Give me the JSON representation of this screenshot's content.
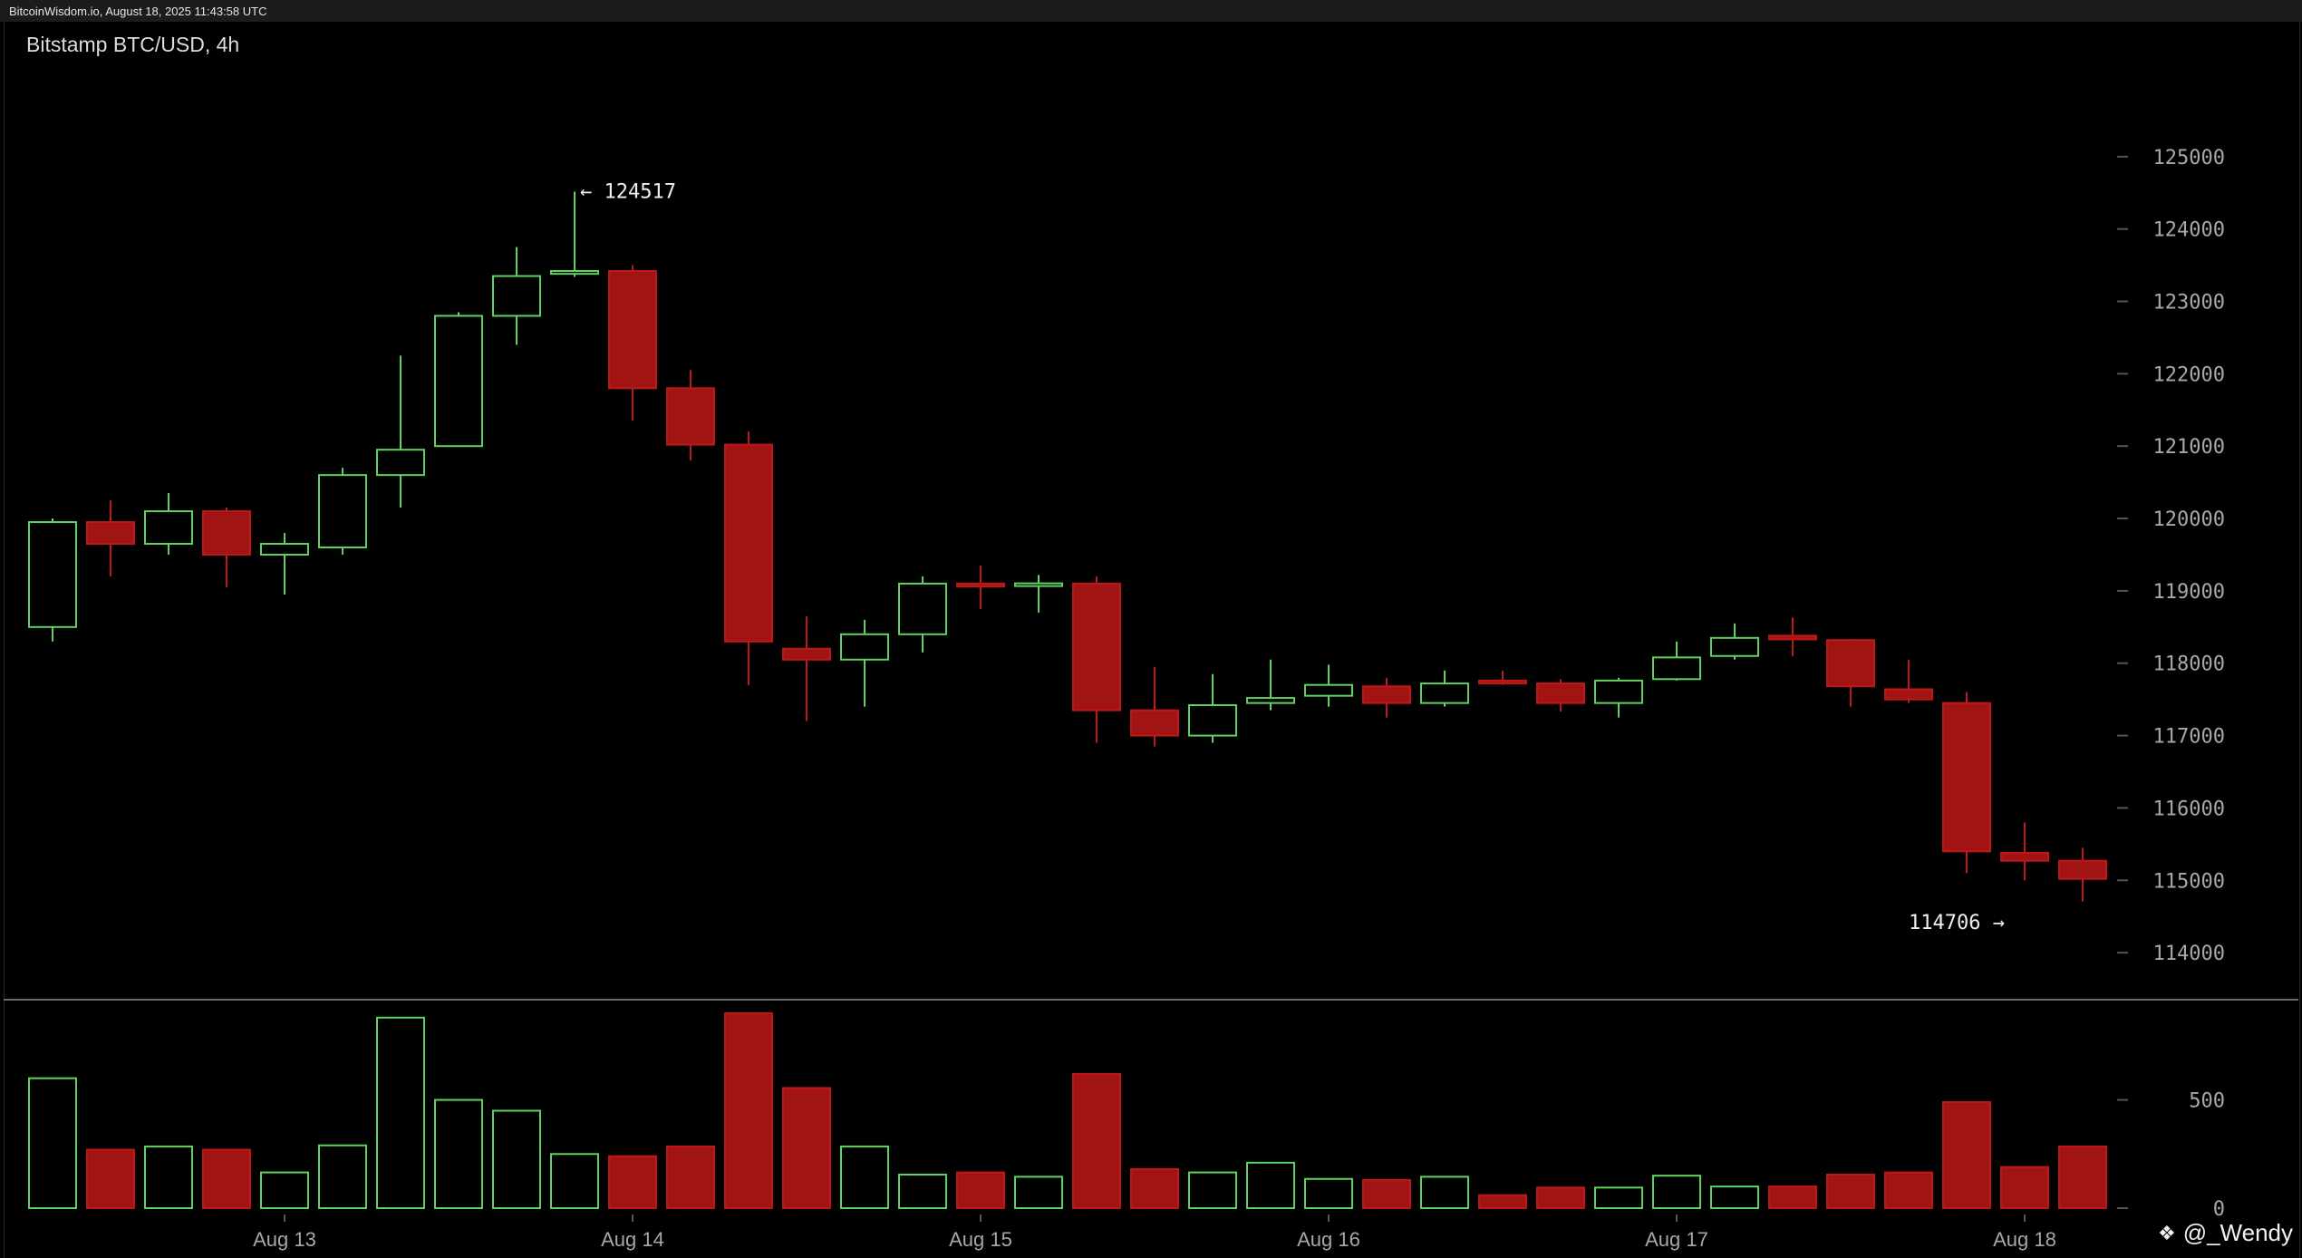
{
  "header": {
    "source": "BitcoinWisdom.io, August 18, 2025 11:43:58 UTC",
    "title": "Bitstamp BTC/USD, 4h"
  },
  "watermark": {
    "icon": "binance-diamond-icon",
    "text": "@_Wendy"
  },
  "colors": {
    "up": "#5fd35f",
    "down": "#a01414",
    "down_border": "#c01818",
    "axis_text": "#a8a8a8",
    "grid": "#555555"
  },
  "chart_data": {
    "type": "candlestick",
    "title": "Bitstamp BTC/USD, 4h",
    "price_axis": {
      "ylim": [
        113200,
        126100
      ],
      "ticks": [
        114000,
        115000,
        116000,
        117000,
        118000,
        119000,
        120000,
        121000,
        122000,
        123000,
        124000,
        125000
      ]
    },
    "volume_axis": {
      "ylim": [
        0,
        900
      ],
      "ticks": [
        0,
        500
      ]
    },
    "x_labels": [
      "Aug 13",
      "Aug 14",
      "Aug 15",
      "Aug 16",
      "Aug 17",
      "Aug 18"
    ],
    "x_label_positions": [
      4,
      10,
      16,
      22,
      28,
      34
    ],
    "annotations": [
      {
        "label": "← 124517",
        "candle": 9,
        "price": 124517,
        "side": "right"
      },
      {
        "label": "114706 →",
        "candle": 34,
        "price": 114706,
        "side": "left"
      }
    ],
    "candles": [
      {
        "o": 118500,
        "h": 120000,
        "l": 118300,
        "c": 119950,
        "v": 600
      },
      {
        "o": 119950,
        "h": 120250,
        "l": 119200,
        "c": 119650,
        "v": 270
      },
      {
        "o": 119650,
        "h": 120350,
        "l": 119500,
        "c": 120100,
        "v": 285
      },
      {
        "o": 120100,
        "h": 120150,
        "l": 119050,
        "c": 119500,
        "v": 270
      },
      {
        "o": 119500,
        "h": 119800,
        "l": 118950,
        "c": 119650,
        "v": 165
      },
      {
        "o": 119600,
        "h": 120700,
        "l": 119500,
        "c": 120600,
        "v": 290
      },
      {
        "o": 120600,
        "h": 122250,
        "l": 120150,
        "c": 120950,
        "v": 880
      },
      {
        "o": 121000,
        "h": 122850,
        "l": 121000,
        "c": 122800,
        "v": 500
      },
      {
        "o": 122800,
        "h": 123750,
        "l": 122400,
        "c": 123350,
        "v": 450
      },
      {
        "o": 123380,
        "h": 124517,
        "l": 123340,
        "c": 123420,
        "v": 250
      },
      {
        "o": 123420,
        "h": 123500,
        "l": 121350,
        "c": 121800,
        "v": 240
      },
      {
        "o": 121800,
        "h": 122050,
        "l": 120800,
        "c": 121020,
        "v": 285
      },
      {
        "o": 121020,
        "h": 121200,
        "l": 117700,
        "c": 118300,
        "v": 900
      },
      {
        "o": 118200,
        "h": 118650,
        "l": 117200,
        "c": 118050,
        "v": 555
      },
      {
        "o": 118050,
        "h": 118600,
        "l": 117400,
        "c": 118400,
        "v": 285
      },
      {
        "o": 118400,
        "h": 119200,
        "l": 118150,
        "c": 119100,
        "v": 155
      },
      {
        "o": 119100,
        "h": 119350,
        "l": 118750,
        "c": 119060,
        "v": 165
      },
      {
        "o": 119070,
        "h": 119220,
        "l": 118700,
        "c": 119100,
        "v": 145
      },
      {
        "o": 119100,
        "h": 119200,
        "l": 116900,
        "c": 117350,
        "v": 620
      },
      {
        "o": 117350,
        "h": 117950,
        "l": 116850,
        "c": 117000,
        "v": 180
      },
      {
        "o": 117000,
        "h": 117850,
        "l": 116900,
        "c": 117420,
        "v": 165
      },
      {
        "o": 117450,
        "h": 118050,
        "l": 117350,
        "c": 117520,
        "v": 210
      },
      {
        "o": 117550,
        "h": 117980,
        "l": 117400,
        "c": 117700,
        "v": 135
      },
      {
        "o": 117680,
        "h": 117800,
        "l": 117250,
        "c": 117450,
        "v": 130
      },
      {
        "o": 117450,
        "h": 117900,
        "l": 117400,
        "c": 117720,
        "v": 145
      },
      {
        "o": 117760,
        "h": 117900,
        "l": 117700,
        "c": 117720,
        "v": 60
      },
      {
        "o": 117720,
        "h": 117780,
        "l": 117330,
        "c": 117450,
        "v": 95
      },
      {
        "o": 117450,
        "h": 117800,
        "l": 117250,
        "c": 117760,
        "v": 95
      },
      {
        "o": 117780,
        "h": 118300,
        "l": 117760,
        "c": 118080,
        "v": 150
      },
      {
        "o": 118100,
        "h": 118550,
        "l": 118050,
        "c": 118350,
        "v": 100
      },
      {
        "o": 118380,
        "h": 118630,
        "l": 118100,
        "c": 118330,
        "v": 100
      },
      {
        "o": 118320,
        "h": 118330,
        "l": 117400,
        "c": 117680,
        "v": 155
      },
      {
        "o": 117640,
        "h": 118050,
        "l": 117450,
        "c": 117500,
        "v": 165
      },
      {
        "o": 117450,
        "h": 117600,
        "l": 115100,
        "c": 115400,
        "v": 490
      },
      {
        "o": 115380,
        "h": 115800,
        "l": 115000,
        "c": 115270,
        "v": 190
      },
      {
        "o": 115270,
        "h": 115450,
        "l": 114706,
        "c": 115020,
        "v": 285
      }
    ]
  }
}
